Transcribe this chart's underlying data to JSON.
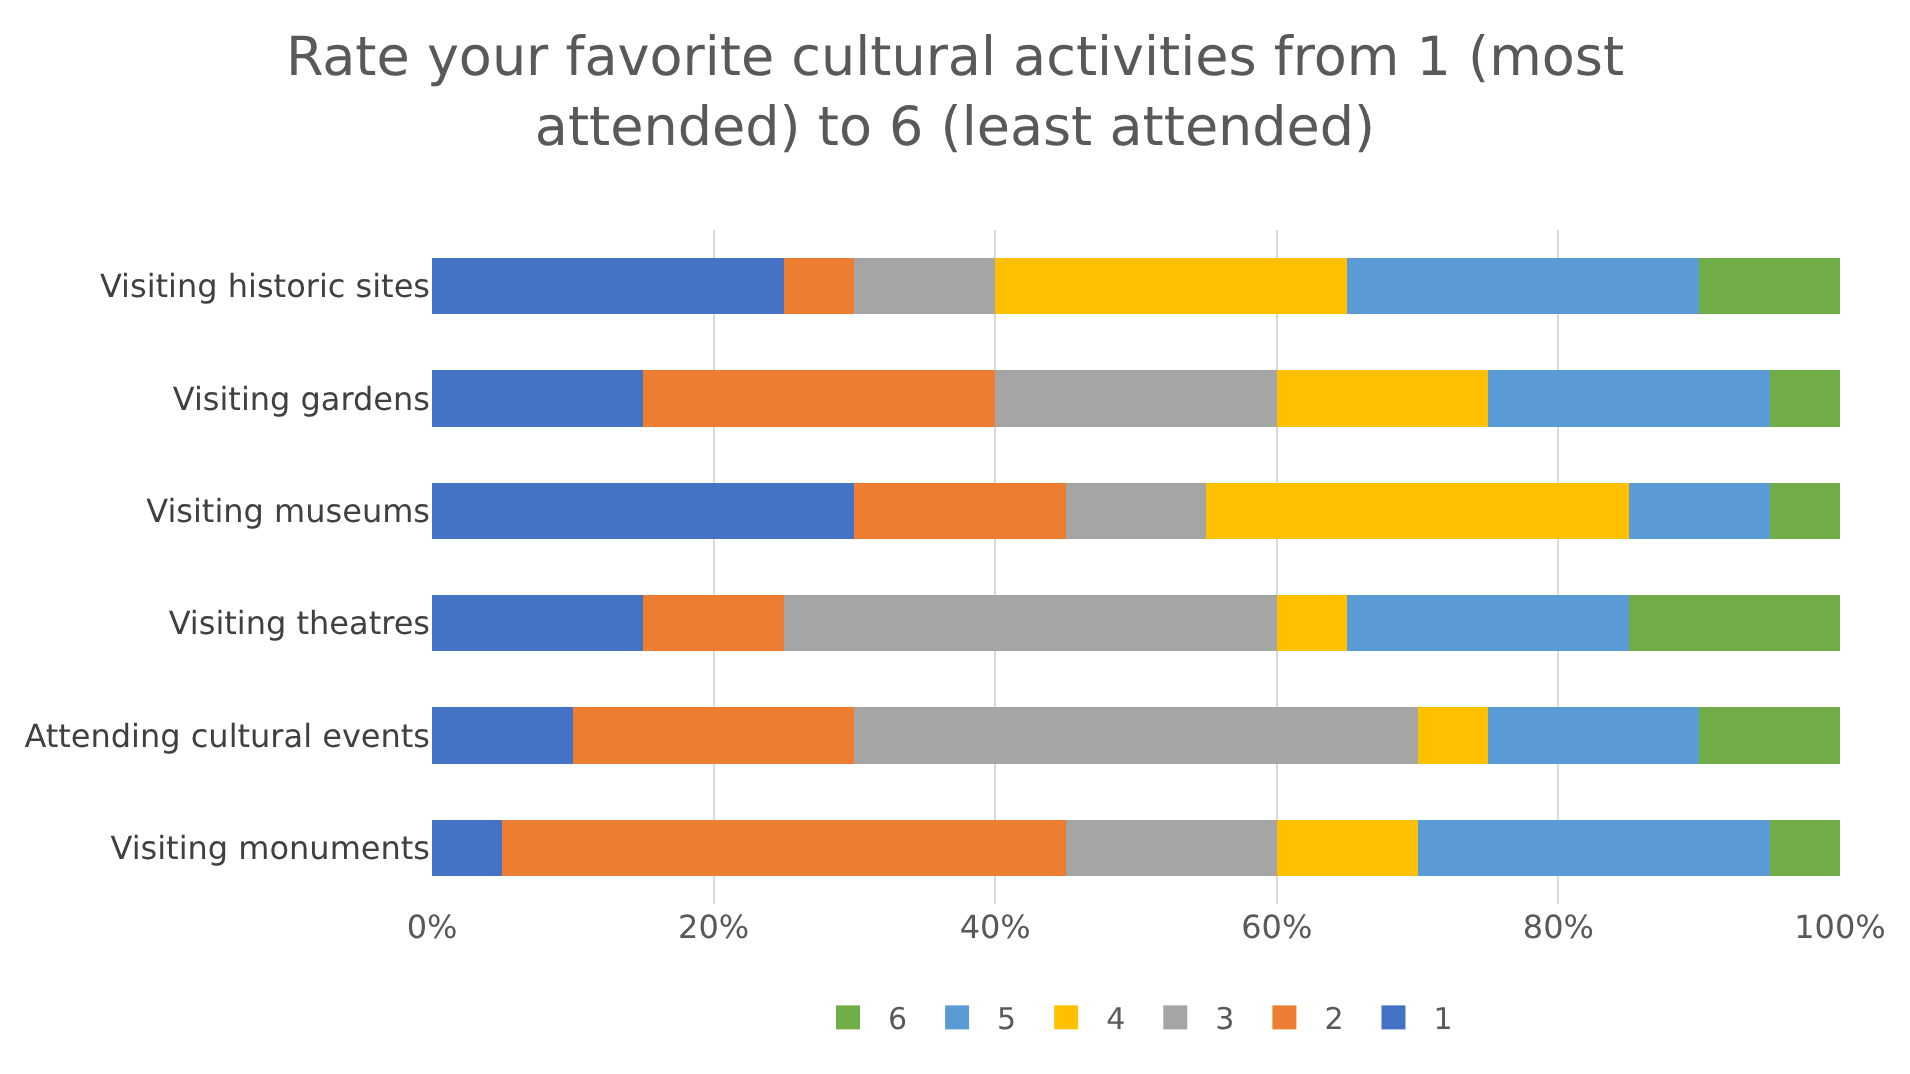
{
  "chart_data": {
    "type": "bar",
    "orientation": "horizontal",
    "stacked": true,
    "title": "Rate your favorite cultural activities from 1 (most attended) to 6 (least attended)",
    "categories": [
      "Visiting historic sites",
      "Visiting gardens",
      "Visiting museums",
      "Visiting theatres",
      "Attending cultural events",
      "Visiting monuments"
    ],
    "series": [
      {
        "name": "1",
        "color": "#4472c4",
        "values": [
          25,
          15,
          30,
          15,
          10,
          5
        ]
      },
      {
        "name": "2",
        "color": "#ed7d31",
        "values": [
          5,
          25,
          15,
          10,
          20,
          40
        ]
      },
      {
        "name": "3",
        "color": "#a5a5a5",
        "values": [
          10,
          20,
          10,
          35,
          40,
          15
        ]
      },
      {
        "name": "4",
        "color": "#ffc000",
        "values": [
          25,
          15,
          30,
          5,
          5,
          10
        ]
      },
      {
        "name": "5",
        "color": "#5b9bd5",
        "values": [
          25,
          20,
          10,
          20,
          15,
          25
        ]
      },
      {
        "name": "6",
        "color": "#70ad47",
        "values": [
          10,
          5,
          5,
          15,
          10,
          5
        ]
      }
    ],
    "xlim": [
      0,
      100
    ],
    "xticks": [
      {
        "value": 0,
        "label": "0%"
      },
      {
        "value": 20,
        "label": "20%"
      },
      {
        "value": 40,
        "label": "40%"
      },
      {
        "value": 60,
        "label": "60%"
      },
      {
        "value": 80,
        "label": "80%"
      },
      {
        "value": 100,
        "label": "100%"
      }
    ],
    "grid": "x",
    "legend": "bottom"
  }
}
